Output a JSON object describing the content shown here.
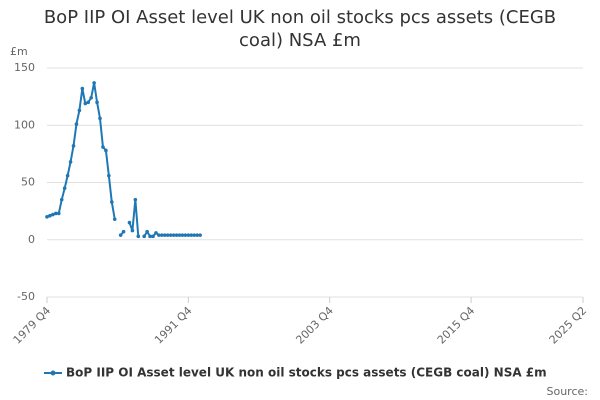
{
  "chart_data": {
    "type": "line",
    "title": "BoP IIP OI Asset level UK non oil stocks pcs assets (CEGB coal) NSA £m",
    "y_unit": "£m",
    "source": "Source:",
    "categories": [
      "1979 Q4",
      null,
      null,
      null,
      null,
      null,
      null,
      null,
      null,
      null,
      null,
      null,
      null,
      null,
      null,
      null,
      null,
      null,
      null,
      null,
      null,
      null,
      null,
      null,
      null,
      null,
      null,
      null,
      null,
      null,
      null,
      null,
      null,
      null,
      null,
      null,
      null,
      null,
      null,
      null,
      null,
      null,
      null,
      null,
      null,
      null,
      null,
      null,
      "1991 Q4",
      null,
      null,
      null,
      null,
      null,
      null,
      null,
      null,
      null,
      null,
      null,
      null,
      null,
      null,
      null,
      null,
      null,
      null,
      null,
      null,
      null,
      null,
      null,
      null,
      null,
      null,
      null,
      null,
      null,
      null,
      null,
      null,
      null,
      null,
      null,
      null,
      null,
      null,
      null,
      null,
      null,
      null,
      null,
      null,
      null,
      null,
      null,
      "2003 Q4",
      null,
      null,
      null,
      null,
      null,
      null,
      null,
      null,
      null,
      null,
      null,
      null,
      null,
      null,
      null,
      null,
      null,
      null,
      null,
      null,
      null,
      null,
      null,
      null,
      null,
      null,
      null,
      null,
      null,
      null,
      null,
      null,
      null,
      null,
      null,
      null,
      null,
      null,
      null,
      null,
      null,
      null,
      null,
      null,
      null,
      null,
      null,
      "2015 Q4",
      null,
      null,
      null,
      null,
      null,
      null,
      null,
      null,
      null,
      null,
      null,
      null,
      null,
      null,
      null,
      null,
      null,
      null,
      null,
      null,
      null,
      null,
      null,
      null,
      null,
      null,
      null,
      null,
      null,
      null,
      null,
      null,
      null,
      null,
      null,
      null,
      null,
      "2025 Q2"
    ],
    "series": [
      {
        "name": "BoP IIP OI Asset level UK non oil stocks pcs assets (CEGB coal) NSA £m",
        "color": "#1f78b4",
        "values": [
          20,
          21,
          22,
          23,
          23,
          35,
          45,
          56,
          68,
          82,
          101,
          113,
          132,
          119,
          120,
          124,
          137,
          120,
          106,
          81,
          78,
          56,
          33,
          18,
          null,
          4,
          7,
          null,
          15,
          8,
          35,
          3,
          null,
          3,
          7,
          3,
          3,
          6,
          4,
          4,
          4,
          4,
          4,
          4,
          4,
          4,
          4,
          4,
          4,
          4,
          4,
          4,
          4,
          null,
          null,
          null,
          null,
          null,
          null,
          null,
          null,
          null,
          null,
          null,
          null,
          null,
          null,
          null,
          null,
          null,
          null,
          null,
          null,
          null,
          null,
          null,
          null,
          null,
          null,
          null,
          null,
          null,
          null,
          null,
          null,
          null,
          null,
          null,
          null,
          null,
          null,
          null,
          null,
          null,
          null,
          null,
          null,
          null,
          null,
          null,
          null,
          null,
          null,
          null,
          null,
          null,
          null,
          null,
          null,
          null,
          null,
          null,
          null,
          null,
          null,
          null,
          null,
          null,
          null,
          null,
          null,
          null,
          null,
          null,
          null,
          null,
          null,
          null,
          null,
          null,
          null,
          null,
          null,
          null,
          null,
          null,
          null,
          null,
          null,
          null,
          null,
          null,
          null,
          null,
          null,
          null,
          null,
          null,
          null,
          null,
          null,
          null,
          null,
          null,
          null,
          null,
          null,
          null,
          null,
          null,
          null,
          null,
          null,
          null,
          null,
          null,
          null,
          null,
          null,
          null,
          null,
          null,
          null,
          null,
          null,
          null,
          null,
          null,
          null,
          null,
          null,
          null,
          null
        ]
      }
    ],
    "ylim": [
      -50,
      150
    ],
    "yticks": [
      -50,
      0,
      50,
      100,
      150
    ],
    "grid": true,
    "legend": "bottom"
  }
}
